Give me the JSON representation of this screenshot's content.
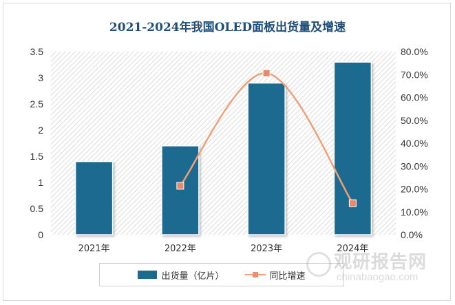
{
  "chart_data": {
    "type": "bar",
    "title": "2021-2024年我国OLED面板出货量及增速",
    "categories": [
      "2021年",
      "2022年",
      "2023年",
      "2024年"
    ],
    "series": [
      {
        "name": "出货量（亿片）",
        "type": "bar",
        "axis": "left",
        "values": [
          1.4,
          1.7,
          2.9,
          3.3
        ],
        "color": "#1b6a8f"
      },
      {
        "name": "同比增速",
        "type": "line",
        "axis": "right",
        "values": [
          null,
          21.4,
          70.6,
          13.8
        ],
        "color": "#f0a079"
      }
    ],
    "y_left": {
      "min": 0,
      "max": 3.5,
      "ticks": [
        "0",
        "0.5",
        "1",
        "1.5",
        "2",
        "2.5",
        "3",
        "3.5"
      ]
    },
    "y_right": {
      "min": 0,
      "max": 80,
      "ticks": [
        "0.0%",
        "10.0%",
        "20.0%",
        "30.0%",
        "40.0%",
        "50.0%",
        "60.0%",
        "70.0%",
        "80.0%"
      ]
    },
    "legend_placement": "bottom",
    "grid": false
  },
  "watermark": {
    "name": "观研报告网",
    "url": "chinabaogao.com",
    "logo_icon": "chinabaogao-logo-icon"
  }
}
